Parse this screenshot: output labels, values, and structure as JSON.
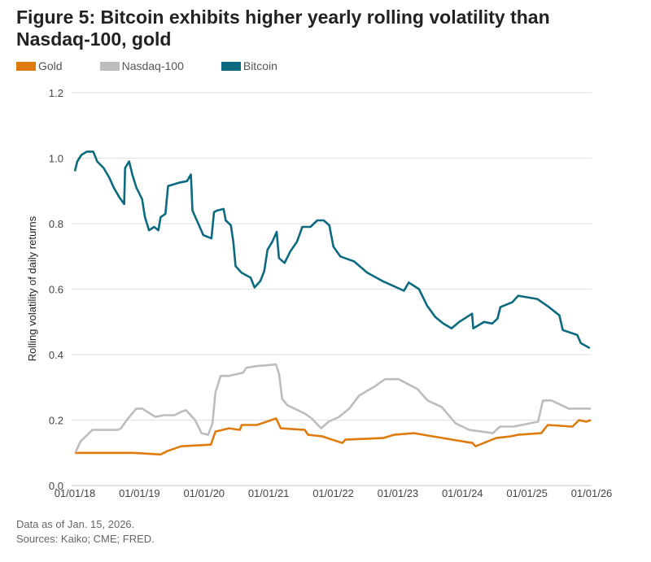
{
  "chart_data": {
    "type": "line",
    "title": "Figure 5: Bitcoin exhibits higher yearly rolling volatility than Nasdaq-100, gold",
    "xlabel": "",
    "ylabel": "Rolling volatility of daily returns",
    "xlim": [
      "2018-01-01",
      "2026-01-01"
    ],
    "ylim": [
      0,
      1.2
    ],
    "yticks": [
      "0.0",
      "0.2",
      "0.4",
      "0.6",
      "0.8",
      "1.0",
      "1.2"
    ],
    "xticks": [
      "01/01/18",
      "01/01/19",
      "01/01/20",
      "01/01/21",
      "01/01/22",
      "01/01/23",
      "01/01/24",
      "01/01/25",
      "01/01/26"
    ],
    "grid": "horizontal",
    "legend_position": "top-left",
    "series": [
      {
        "name": "Gold",
        "color": "#df7a0d",
        "points": [
          [
            "2018-01-01",
            0.1
          ],
          [
            "2018-05-16",
            0.1
          ],
          [
            "2018-11-27",
            0.1
          ],
          [
            "2019-05-01",
            0.095
          ],
          [
            "2019-06-07",
            0.105
          ],
          [
            "2019-08-25",
            0.12
          ],
          [
            "2020-02-09",
            0.125
          ],
          [
            "2020-03-06",
            0.165
          ],
          [
            "2020-05-22",
            0.175
          ],
          [
            "2020-07-22",
            0.17
          ],
          [
            "2020-08-01",
            0.185
          ],
          [
            "2020-10-27",
            0.185
          ],
          [
            "2021-02-12",
            0.205
          ],
          [
            "2021-03-10",
            0.175
          ],
          [
            "2021-07-24",
            0.17
          ],
          [
            "2021-08-12",
            0.155
          ],
          [
            "2021-11-01",
            0.15
          ],
          [
            "2022-02-22",
            0.13
          ],
          [
            "2022-03-10",
            0.14
          ],
          [
            "2022-10-10",
            0.145
          ],
          [
            "2022-12-10",
            0.155
          ],
          [
            "2023-04-03",
            0.16
          ],
          [
            "2023-11-06",
            0.14
          ],
          [
            "2024-02-28",
            0.13
          ],
          [
            "2024-03-16",
            0.12
          ],
          [
            "2024-07-10",
            0.145
          ],
          [
            "2024-09-28",
            0.15
          ],
          [
            "2024-11-10",
            0.155
          ],
          [
            "2025-03-22",
            0.16
          ],
          [
            "2025-04-28",
            0.185
          ],
          [
            "2025-09-15",
            0.18
          ],
          [
            "2025-10-22",
            0.2
          ],
          [
            "2025-12-01",
            0.195
          ],
          [
            "2025-12-28",
            0.2
          ]
        ]
      },
      {
        "name": "Nasdaq-100",
        "color": "#bdbdbd",
        "points": [
          [
            "2018-01-03",
            0.1
          ],
          [
            "2018-02-02",
            0.135
          ],
          [
            "2018-04-10",
            0.17
          ],
          [
            "2018-09-01",
            0.17
          ],
          [
            "2018-09-19",
            0.175
          ],
          [
            "2018-10-21",
            0.2
          ],
          [
            "2018-12-15",
            0.235
          ],
          [
            "2019-01-16",
            0.235
          ],
          [
            "2019-04-01",
            0.21
          ],
          [
            "2019-05-19",
            0.215
          ],
          [
            "2019-07-19",
            0.215
          ],
          [
            "2019-08-25",
            0.225
          ],
          [
            "2019-09-22",
            0.23
          ],
          [
            "2019-11-12",
            0.2
          ],
          [
            "2019-12-18",
            0.16
          ],
          [
            "2020-01-25",
            0.155
          ],
          [
            "2020-02-18",
            0.19
          ],
          [
            "2020-03-06",
            0.285
          ],
          [
            "2020-04-04",
            0.335
          ],
          [
            "2020-05-22",
            0.335
          ],
          [
            "2020-08-10",
            0.345
          ],
          [
            "2020-08-28",
            0.36
          ],
          [
            "2020-10-27",
            0.365
          ],
          [
            "2021-02-12",
            0.37
          ],
          [
            "2021-03-01",
            0.34
          ],
          [
            "2021-03-18",
            0.265
          ],
          [
            "2021-04-18",
            0.245
          ],
          [
            "2021-07-24",
            0.22
          ],
          [
            "2021-09-01",
            0.205
          ],
          [
            "2021-10-25",
            0.175
          ],
          [
            "2021-12-06",
            0.195
          ],
          [
            "2022-02-03",
            0.21
          ],
          [
            "2022-04-01",
            0.235
          ],
          [
            "2022-05-28",
            0.275
          ],
          [
            "2022-08-15",
            0.3
          ],
          [
            "2022-10-21",
            0.325
          ],
          [
            "2023-01-06",
            0.325
          ],
          [
            "2023-04-22",
            0.295
          ],
          [
            "2023-06-19",
            0.26
          ],
          [
            "2023-09-06",
            0.24
          ],
          [
            "2023-11-24",
            0.19
          ],
          [
            "2024-02-09",
            0.17
          ],
          [
            "2024-06-22",
            0.16
          ],
          [
            "2024-08-01",
            0.18
          ],
          [
            "2024-10-16",
            0.18
          ],
          [
            "2025-03-04",
            0.195
          ],
          [
            "2025-04-01",
            0.26
          ],
          [
            "2025-05-19",
            0.26
          ],
          [
            "2025-08-25",
            0.235
          ],
          [
            "2025-12-28",
            0.235
          ]
        ]
      },
      {
        "name": "Bitcoin",
        "color": "#0b6a80",
        "points": [
          [
            "2018-01-01",
            0.96
          ],
          [
            "2018-01-15",
            0.99
          ],
          [
            "2018-02-07",
            1.01
          ],
          [
            "2018-03-10",
            1.02
          ],
          [
            "2018-04-15",
            1.02
          ],
          [
            "2018-05-07",
            0.99
          ],
          [
            "2018-06-13",
            0.97
          ],
          [
            "2018-07-15",
            0.94
          ],
          [
            "2018-08-09",
            0.91
          ],
          [
            "2018-09-10",
            0.88
          ],
          [
            "2018-10-07",
            0.86
          ],
          [
            "2018-10-12",
            0.97
          ],
          [
            "2018-11-04",
            0.99
          ],
          [
            "2018-11-22",
            0.95
          ],
          [
            "2018-12-15",
            0.91
          ],
          [
            "2019-01-16",
            0.875
          ],
          [
            "2019-02-01",
            0.82
          ],
          [
            "2019-02-24",
            0.78
          ],
          [
            "2019-03-25",
            0.79
          ],
          [
            "2019-04-18",
            0.78
          ],
          [
            "2019-05-01",
            0.82
          ],
          [
            "2019-05-28",
            0.83
          ],
          [
            "2019-06-12",
            0.915
          ],
          [
            "2019-08-12",
            0.925
          ],
          [
            "2019-09-27",
            0.93
          ],
          [
            "2019-10-19",
            0.95
          ],
          [
            "2019-10-28",
            0.84
          ],
          [
            "2019-12-04",
            0.795
          ],
          [
            "2019-12-28",
            0.765
          ],
          [
            "2020-02-12",
            0.755
          ],
          [
            "2020-02-27",
            0.835
          ],
          [
            "2020-03-15",
            0.84
          ],
          [
            "2020-04-21",
            0.845
          ],
          [
            "2020-05-03",
            0.81
          ],
          [
            "2020-06-01",
            0.795
          ],
          [
            "2020-06-15",
            0.745
          ],
          [
            "2020-06-28",
            0.67
          ],
          [
            "2020-08-01",
            0.65
          ],
          [
            "2020-09-21",
            0.635
          ],
          [
            "2020-10-13",
            0.605
          ],
          [
            "2020-11-15",
            0.625
          ],
          [
            "2020-12-07",
            0.655
          ],
          [
            "2020-12-25",
            0.72
          ],
          [
            "2021-01-22",
            0.745
          ],
          [
            "2021-02-15",
            0.775
          ],
          [
            "2021-02-28",
            0.695
          ],
          [
            "2021-04-01",
            0.68
          ],
          [
            "2021-05-03",
            0.715
          ],
          [
            "2021-06-10",
            0.745
          ],
          [
            "2021-07-10",
            0.79
          ],
          [
            "2021-08-25",
            0.79
          ],
          [
            "2021-10-03",
            0.81
          ],
          [
            "2021-11-08",
            0.81
          ],
          [
            "2021-12-10",
            0.795
          ],
          [
            "2022-01-02",
            0.73
          ],
          [
            "2022-02-10",
            0.7
          ],
          [
            "2022-04-28",
            0.685
          ],
          [
            "2022-07-13",
            0.65
          ],
          [
            "2022-10-05",
            0.625
          ],
          [
            "2023-02-05",
            0.595
          ],
          [
            "2023-03-04",
            0.62
          ],
          [
            "2023-05-01",
            0.6
          ],
          [
            "2023-06-15",
            0.55
          ],
          [
            "2023-08-01",
            0.515
          ],
          [
            "2023-09-15",
            0.495
          ],
          [
            "2023-11-01",
            0.48
          ],
          [
            "2023-12-15",
            0.5
          ],
          [
            "2024-02-25",
            0.525
          ],
          [
            "2024-03-03",
            0.48
          ],
          [
            "2024-05-03",
            0.5
          ],
          [
            "2024-06-18",
            0.495
          ],
          [
            "2024-07-18",
            0.51
          ],
          [
            "2024-08-03",
            0.545
          ],
          [
            "2024-10-10",
            0.56
          ],
          [
            "2024-11-12",
            0.58
          ],
          [
            "2025-02-28",
            0.57
          ],
          [
            "2025-05-05",
            0.545
          ],
          [
            "2025-07-03",
            0.52
          ],
          [
            "2025-07-22",
            0.475
          ],
          [
            "2025-10-12",
            0.46
          ],
          [
            "2025-11-01",
            0.435
          ],
          [
            "2025-12-22",
            0.42
          ]
        ]
      }
    ]
  },
  "notes": {
    "data_as_of": "Data as of Jan. 15, 2026.",
    "sources": "Sources: Kaiko; CME; FRED."
  }
}
